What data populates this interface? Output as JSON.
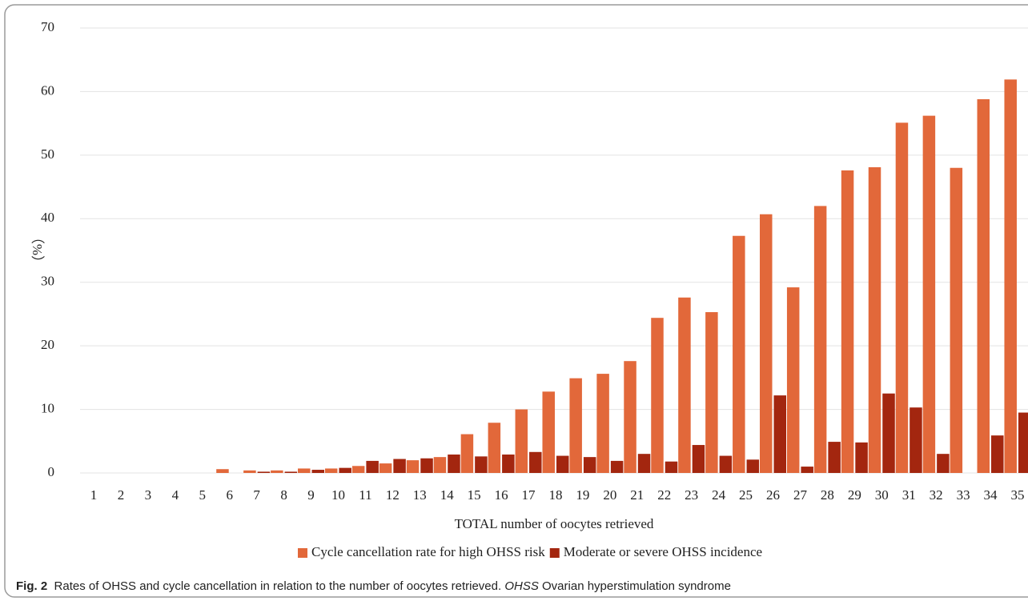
{
  "chart_data": {
    "type": "bar",
    "y_label": "（%）",
    "x_label": "TOTAL number of oocytes retrieved",
    "categories": [
      "1",
      "2",
      "3",
      "4",
      "5",
      "6",
      "7",
      "8",
      "9",
      "10",
      "11",
      "12",
      "13",
      "14",
      "15",
      "16",
      "17",
      "18",
      "19",
      "20",
      "21",
      "22",
      "23",
      "24",
      "25",
      "26",
      "27",
      "28",
      "29",
      "30",
      "31",
      "32",
      "33",
      "34",
      "35"
    ],
    "series": [
      {
        "name": "Cycle cancellation rate for high OHSS risk",
        "color": "#e2683a",
        "values": [
          0,
          0,
          0,
          0,
          0,
          0.6,
          0.4,
          0.4,
          0.7,
          0.7,
          1.1,
          1.5,
          2.0,
          2.5,
          6.1,
          7.9,
          10.0,
          12.8,
          14.9,
          15.6,
          17.6,
          24.4,
          27.6,
          25.3,
          37.3,
          40.7,
          29.2,
          42.0,
          47.6,
          48.1,
          55.1,
          56.2,
          48.0,
          58.8,
          61.9
        ]
      },
      {
        "name": "Moderate or severe OHSS incidence",
        "color": "#a3260f",
        "values": [
          0,
          0,
          0,
          0,
          0,
          0,
          0.2,
          0.2,
          0.5,
          0.8,
          1.9,
          2.2,
          2.3,
          2.9,
          2.6,
          2.9,
          3.3,
          2.7,
          2.5,
          1.9,
          3.0,
          1.8,
          4.4,
          2.7,
          2.1,
          12.2,
          1.0,
          4.9,
          4.8,
          12.5,
          10.3,
          3.0,
          0,
          5.9,
          9.5
        ]
      }
    ],
    "ylim": [
      0,
      70
    ],
    "yticks": [
      0,
      10,
      20,
      30,
      40,
      50,
      60,
      70
    ],
    "grid": true,
    "legend": "bottom"
  },
  "caption": {
    "label": "Fig. 2",
    "text": "Rates of OHSS and cycle cancellation in relation to the number of oocytes retrieved.",
    "abbr": "OHSS",
    "definition": "Ovarian hyperstimulation syndrome"
  }
}
